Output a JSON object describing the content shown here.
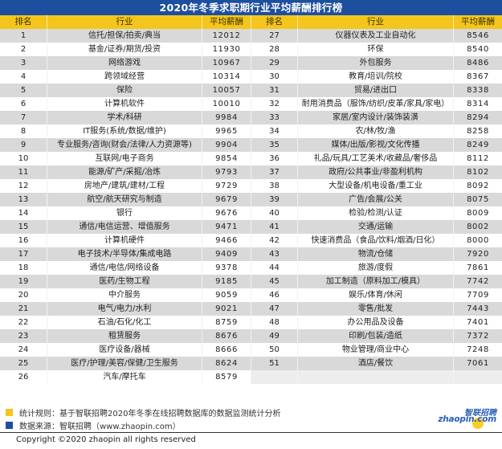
{
  "title": "2020年冬季求职期行业平均薪酬排行榜",
  "columns": {
    "rank": "排名",
    "industry": "行业",
    "salary": "平均薪酬"
  },
  "colors": {
    "title_bg": "#1d4f9f",
    "header_bg": "#f4c51c",
    "row_alt_bg": "#d9d9d9",
    "row_bg": "#ffffff",
    "legend_yellow": "#f4c51c",
    "legend_blue": "#1d4f9f"
  },
  "rows": [
    {
      "rank": "1",
      "industry": "信托/担保/拍卖/典当",
      "salary": "12012"
    },
    {
      "rank": "2",
      "industry": "基金/证券/期货/投资",
      "salary": "11930"
    },
    {
      "rank": "3",
      "industry": "网络游戏",
      "salary": "10967"
    },
    {
      "rank": "4",
      "industry": "跨领域经营",
      "salary": "10314"
    },
    {
      "rank": "5",
      "industry": "保险",
      "salary": "10057"
    },
    {
      "rank": "6",
      "industry": "计算机软件",
      "salary": "10010"
    },
    {
      "rank": "7",
      "industry": "学术/科研",
      "salary": "9984"
    },
    {
      "rank": "8",
      "industry": "IT服务(系统/数据/维护)",
      "salary": "9965"
    },
    {
      "rank": "9",
      "industry": "专业服务/咨询(财会/法律/人力资源等)",
      "salary": "9904"
    },
    {
      "rank": "10",
      "industry": "互联网/电子商务",
      "salary": "9854"
    },
    {
      "rank": "11",
      "industry": "能源/矿产/采掘/冶炼",
      "salary": "9793"
    },
    {
      "rank": "12",
      "industry": "房地产/建筑/建材/工程",
      "salary": "9729"
    },
    {
      "rank": "13",
      "industry": "航空/航天研究与制造",
      "salary": "9679"
    },
    {
      "rank": "14",
      "industry": "银行",
      "salary": "9676"
    },
    {
      "rank": "15",
      "industry": "通信/电信运营、增值服务",
      "salary": "9471"
    },
    {
      "rank": "16",
      "industry": "计算机硬件",
      "salary": "9466"
    },
    {
      "rank": "17",
      "industry": "电子技术/半导体/集成电路",
      "salary": "9409"
    },
    {
      "rank": "18",
      "industry": "通信/电信/网络设备",
      "salary": "9378"
    },
    {
      "rank": "19",
      "industry": "医药/生物工程",
      "salary": "9185"
    },
    {
      "rank": "20",
      "industry": "中介服务",
      "salary": "9059"
    },
    {
      "rank": "21",
      "industry": "电气/电力/水利",
      "salary": "9021"
    },
    {
      "rank": "22",
      "industry": "石油/石化/化工",
      "salary": "8759"
    },
    {
      "rank": "23",
      "industry": "租赁服务",
      "salary": "8676"
    },
    {
      "rank": "24",
      "industry": "医疗设备/器械",
      "salary": "8666"
    },
    {
      "rank": "25",
      "industry": "医疗/护理/美容/保健/卫生服务",
      "salary": "8624"
    },
    {
      "rank": "26",
      "industry": "汽车/摩托车",
      "salary": "8579"
    },
    {
      "rank": "27",
      "industry": "仪器仪表及工业自动化",
      "salary": "8546"
    },
    {
      "rank": "28",
      "industry": "环保",
      "salary": "8540"
    },
    {
      "rank": "29",
      "industry": "外包服务",
      "salary": "8486"
    },
    {
      "rank": "30",
      "industry": "教育/培训/院校",
      "salary": "8367"
    },
    {
      "rank": "31",
      "industry": "贸易/进出口",
      "salary": "8338"
    },
    {
      "rank": "32",
      "industry": "耐用消费品（服饰/纺织/皮革/家具/家电）",
      "salary": "8314"
    },
    {
      "rank": "33",
      "industry": "家居/室内设计/装饰装潢",
      "salary": "8294"
    },
    {
      "rank": "34",
      "industry": "农/林/牧/渔",
      "salary": "8258"
    },
    {
      "rank": "35",
      "industry": "媒体/出版/影视/文化传播",
      "salary": "8249"
    },
    {
      "rank": "36",
      "industry": "礼品/玩具/工艺美术/收藏品/奢侈品",
      "salary": "8112"
    },
    {
      "rank": "37",
      "industry": "政府/公共事业/非盈利机构",
      "salary": "8102"
    },
    {
      "rank": "38",
      "industry": "大型设备/机电设备/重工业",
      "salary": "8092"
    },
    {
      "rank": "39",
      "industry": "广告/会展/公关",
      "salary": "8075"
    },
    {
      "rank": "40",
      "industry": "检验/检测/认证",
      "salary": "8009"
    },
    {
      "rank": "41",
      "industry": "交通/运输",
      "salary": "8002"
    },
    {
      "rank": "42",
      "industry": "快速消费品（食品/饮料/烟酒/日化）",
      "salary": "8000"
    },
    {
      "rank": "43",
      "industry": "物流/仓储",
      "salary": "7920"
    },
    {
      "rank": "44",
      "industry": "旅游/度假",
      "salary": "7861"
    },
    {
      "rank": "45",
      "industry": "加工制造（原料加工/模具）",
      "salary": "7742"
    },
    {
      "rank": "46",
      "industry": "娱乐/体育/休闲",
      "salary": "7709"
    },
    {
      "rank": "47",
      "industry": "零售/批发",
      "salary": "7443"
    },
    {
      "rank": "48",
      "industry": "办公用品及设备",
      "salary": "7401"
    },
    {
      "rank": "49",
      "industry": "印刷/包装/造纸",
      "salary": "7372"
    },
    {
      "rank": "50",
      "industry": "物业管理/商业中心",
      "salary": "7248"
    },
    {
      "rank": "51",
      "industry": "酒店/餐饮",
      "salary": "7061"
    }
  ],
  "footer": {
    "legend": [
      {
        "color": "#f4c51c",
        "text": "统计规则：基于智联招聘2020年冬季在线招聘数据库的数据监测统计分析"
      },
      {
        "color": "#1d4f9f",
        "text": "数据来源：智联招聘（www.zhaopin.com）"
      }
    ],
    "logo_cn": "智联招聘",
    "logo_en": "zhaopin.com",
    "copyright": "Copyright ©2020 zhaopin all rights reserved"
  }
}
